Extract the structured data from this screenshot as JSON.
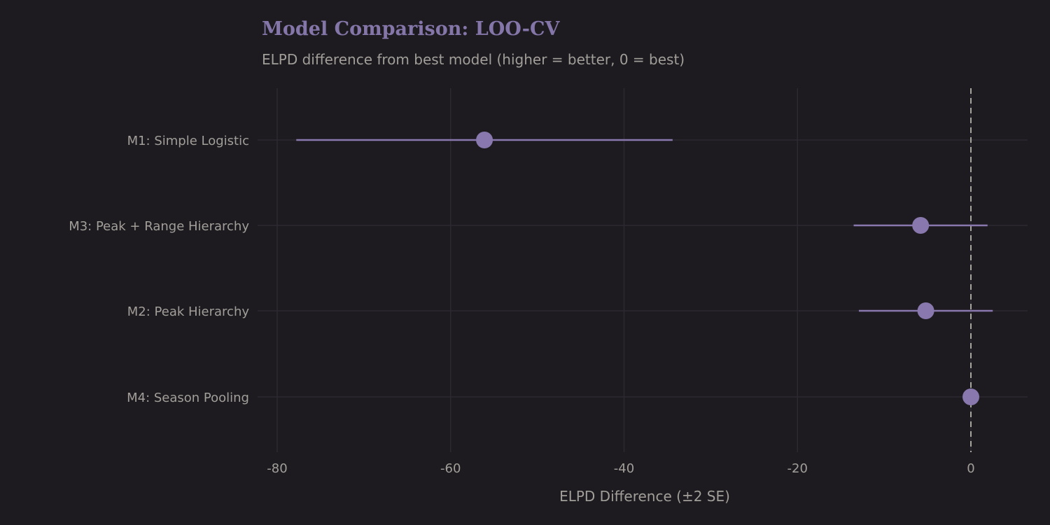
{
  "chart_data": {
    "type": "scatter",
    "subtype": "dot-and-errorbar",
    "title": "Model Comparison: LOO-CV",
    "subtitle": "ELPD difference from best model (higher = better, 0 = best)",
    "xlabel": "ELPD Difference (±2 SE)",
    "ylabel": "",
    "xlim": [
      -83,
      6.5
    ],
    "xticks": [
      -80,
      -60,
      -40,
      -20,
      0
    ],
    "grid": true,
    "reference_line": {
      "x": 0,
      "style": "dashed"
    },
    "categories": [
      "M1: Simple Logistic",
      "M3: Peak + Range Hierarchy",
      "M2: Peak Hierarchy",
      "M4: Season Pooling"
    ],
    "elpd_diff": [
      -56.1,
      -5.8,
      -5.2,
      0.0
    ],
    "se_diff": [
      10.85,
      3.86,
      3.86,
      0.0
    ],
    "colors": {
      "point": "#8878ad",
      "background": "#1d1b20",
      "grid": "#2c2a30",
      "text": "#a29e99",
      "reference": "#a8a49e"
    }
  }
}
